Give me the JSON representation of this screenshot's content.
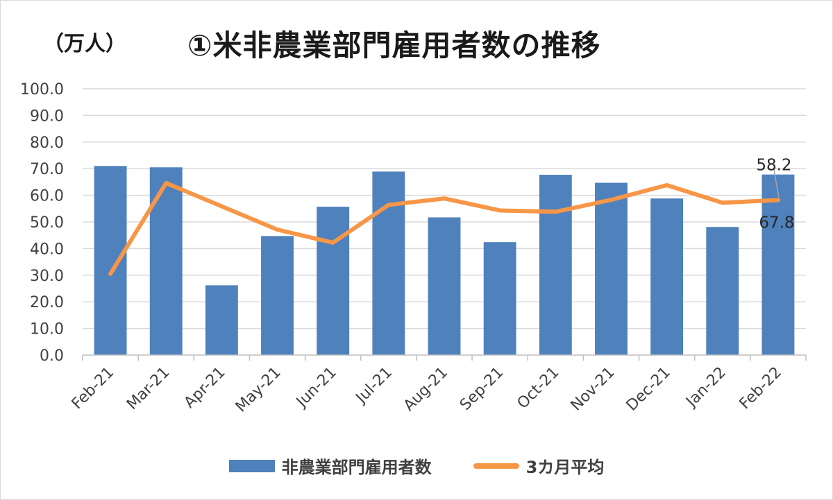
{
  "chart_data": {
    "type": "bar",
    "title": "①米非農業部門雇用者数の推移",
    "unit_label": "（万人）",
    "categories": [
      "Feb-21",
      "Mar-21",
      "Apr-21",
      "May-21",
      "Jun-21",
      "Jul-21",
      "Aug-21",
      "Sep-21",
      "Oct-21",
      "Nov-21",
      "Dec-21",
      "Jan-22",
      "Feb-22"
    ],
    "series": [
      {
        "name": "非農業部門雇用者数",
        "type": "bar",
        "color": "#4f81bd",
        "values": [
          71.0,
          70.5,
          26.2,
          44.7,
          55.7,
          68.9,
          51.7,
          42.4,
          67.7,
          64.7,
          58.8,
          48.1,
          67.8
        ]
      },
      {
        "name": "3カ月平均",
        "type": "line",
        "color": "#f79646",
        "values": [
          30.5,
          64.6,
          null,
          47.1,
          42.2,
          56.4,
          58.8,
          54.3,
          53.8,
          58.3,
          63.8,
          57.2,
          58.2
        ]
      }
    ],
    "ylim": [
      0,
      100
    ],
    "yticks": [
      0,
      10,
      20,
      30,
      40,
      50,
      60,
      70,
      80,
      90,
      100
    ],
    "data_labels": {
      "line_last": "58.2",
      "bar_last": "67.8"
    },
    "legend_position": "bottom",
    "grid": true
  }
}
